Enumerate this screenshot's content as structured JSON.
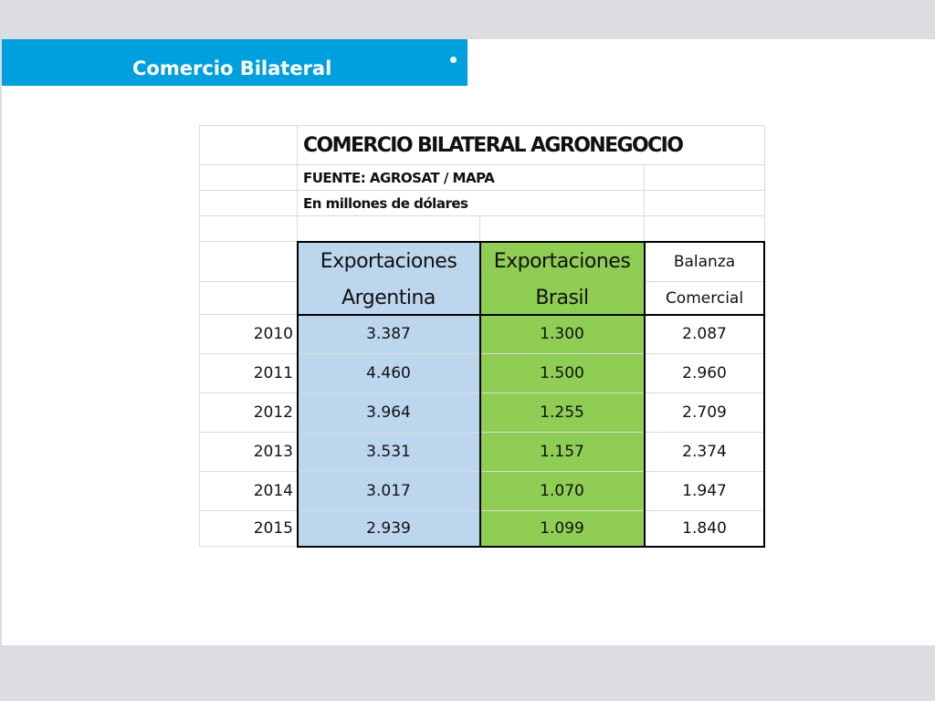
{
  "header": {
    "title": "Comercio Bilateral",
    "accent_color": "#00a0de"
  },
  "sheet": {
    "title": "COMERCIO BILATERAL AGRONEGOCIO",
    "source": "FUENTE: AGROSAT / MAPA",
    "units": "En millones de dólares",
    "columns": {
      "argentina": {
        "line1": "Exportaciones",
        "line2": "Argentina",
        "color": "#bcd6ee"
      },
      "brasil": {
        "line1": "Exportaciones",
        "line2": "Brasil",
        "color": "#8fcd55"
      },
      "balanza": {
        "line1": "Balanza",
        "line2": "Comercial"
      }
    },
    "rows": [
      {
        "year": "2010",
        "argentina": "3.387",
        "brasil": "1.300",
        "balanza": "2.087"
      },
      {
        "year": "2011",
        "argentina": "4.460",
        "brasil": "1.500",
        "balanza": "2.960"
      },
      {
        "year": "2012",
        "argentina": "3.964",
        "brasil": "1.255",
        "balanza": "2.709"
      },
      {
        "year": "2013",
        "argentina": "3.531",
        "brasil": "1.157",
        "balanza": "2.374"
      },
      {
        "year": "2014",
        "argentina": "3.017",
        "brasil": "1.070",
        "balanza": "1.947"
      },
      {
        "year": "2015",
        "argentina": "2.939",
        "brasil": "1.099",
        "balanza": "1.840"
      }
    ]
  }
}
